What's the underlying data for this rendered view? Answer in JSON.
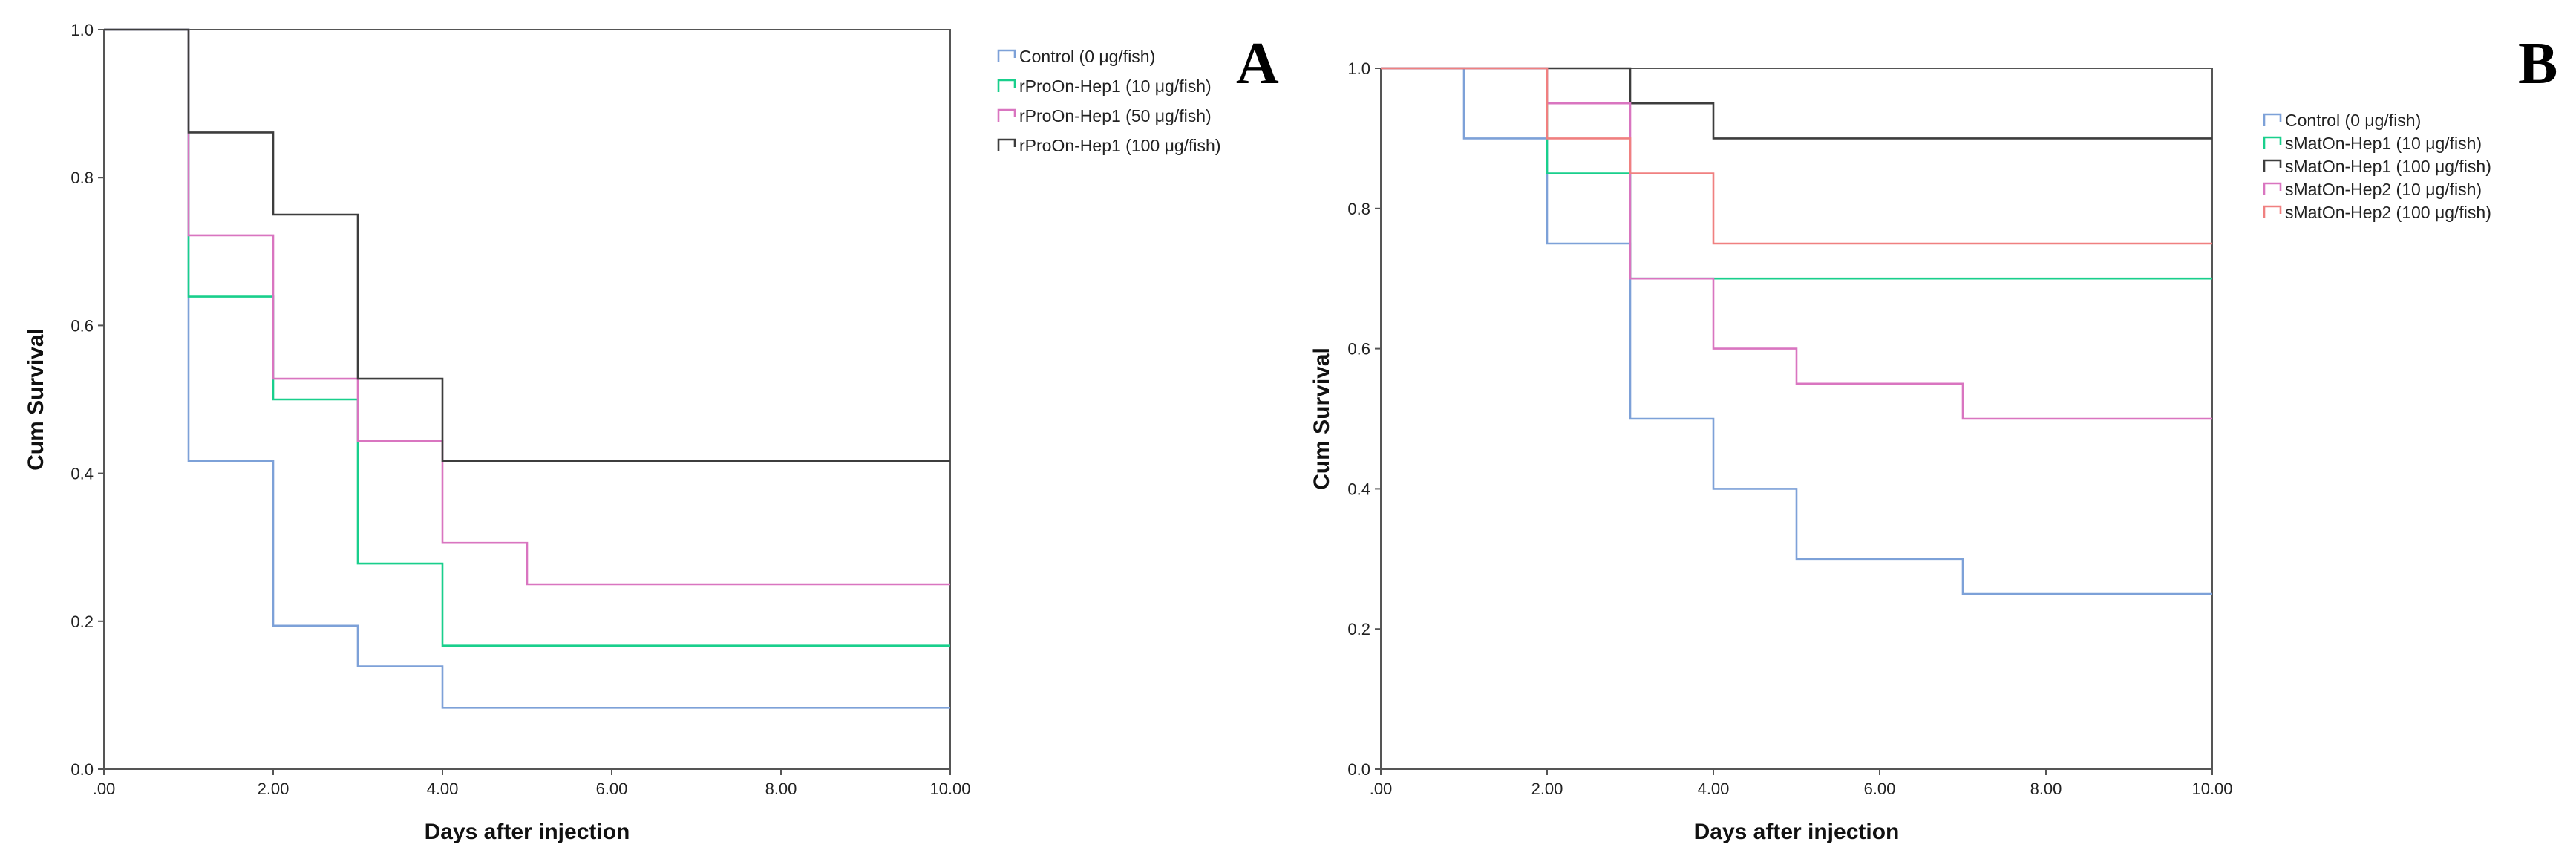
{
  "chart_data": [
    {
      "type": "line",
      "step": true,
      "panel_label": "A",
      "xlabel": "Days after injection",
      "ylabel": "Cum Survival",
      "xlim": [
        0,
        10
      ],
      "ylim": [
        0,
        1
      ],
      "x_ticks": [
        0,
        2,
        4,
        6,
        8,
        10
      ],
      "x_tick_labels": [
        ".00",
        "2.00",
        "4.00",
        "6.00",
        "8.00",
        "10.00"
      ],
      "y_ticks": [
        0,
        0.2,
        0.4,
        0.6,
        0.8,
        1.0
      ],
      "y_tick_labels": [
        "0.0",
        "0.2",
        "0.4",
        "0.6",
        "0.8",
        "1.0"
      ],
      "legend_position": "right",
      "series": [
        {
          "name": "Control (0 μg/fish)",
          "color": "#7da1d8",
          "x": [
            0,
            1,
            2,
            3,
            4,
            10
          ],
          "values": [
            1.0,
            0.417,
            0.194,
            0.139,
            0.083,
            0.083
          ]
        },
        {
          "name": "rProOn-Hep1 (10 μg/fish)",
          "color": "#19cf8c",
          "x": [
            0,
            1,
            2,
            3,
            4,
            10
          ],
          "values": [
            1.0,
            0.639,
            0.5,
            0.278,
            0.167,
            0.167
          ]
        },
        {
          "name": "rProOn-Hep1 (50 μg/fish)",
          "color": "#d975c0",
          "x": [
            0,
            1,
            2,
            3,
            4,
            5,
            10
          ],
          "values": [
            1.0,
            0.722,
            0.528,
            0.444,
            0.306,
            0.25,
            0.25
          ]
        },
        {
          "name": "rProOn-Hep1 (100 μg/fish)",
          "color": "#3d3d3d",
          "x": [
            0,
            1,
            2,
            3,
            4,
            10
          ],
          "values": [
            1.0,
            0.861,
            0.75,
            0.528,
            0.417,
            0.417
          ]
        }
      ]
    },
    {
      "type": "line",
      "step": true,
      "panel_label": "B",
      "xlabel": "Days after injection",
      "ylabel": "Cum Survival",
      "xlim": [
        0,
        10
      ],
      "ylim": [
        0,
        1
      ],
      "x_ticks": [
        0,
        2,
        4,
        6,
        8,
        10
      ],
      "x_tick_labels": [
        ".00",
        "2.00",
        "4.00",
        "6.00",
        "8.00",
        "10.00"
      ],
      "y_ticks": [
        0,
        0.2,
        0.4,
        0.6,
        0.8,
        1.0
      ],
      "y_tick_labels": [
        "0.0",
        "0.2",
        "0.4",
        "0.6",
        "0.8",
        "1.0"
      ],
      "legend_position": "right",
      "series": [
        {
          "name": "Control (0 μg/fish)",
          "color": "#7da1d8",
          "x": [
            0,
            1,
            2,
            3,
            4,
            5,
            7,
            10
          ],
          "values": [
            1.0,
            0.9,
            0.75,
            0.5,
            0.4,
            0.3,
            0.25,
            0.25
          ]
        },
        {
          "name": "sMatOn-Hep1 (10 μg/fish)",
          "color": "#19cf8c",
          "x": [
            0,
            2,
            3,
            10
          ],
          "values": [
            1.0,
            0.85,
            0.7,
            0.7
          ]
        },
        {
          "name": "sMatOn-Hep1 (100 μg/fish)",
          "color": "#3d3d3d",
          "x": [
            0,
            3,
            4,
            10
          ],
          "values": [
            1.0,
            0.95,
            0.9,
            0.9
          ]
        },
        {
          "name": "sMatOn-Hep2 (10 μg/fish)",
          "color": "#d975c0",
          "x": [
            0,
            2,
            3,
            4,
            5,
            7,
            10
          ],
          "values": [
            1.0,
            0.95,
            0.7,
            0.6,
            0.55,
            0.5,
            0.5
          ]
        },
        {
          "name": "sMatOn-Hep2 (100 μg/fish)",
          "color": "#f08080",
          "x": [
            0,
            2,
            3,
            4,
            10
          ],
          "values": [
            1.0,
            0.9,
            0.85,
            0.75,
            0.75
          ]
        }
      ]
    }
  ]
}
